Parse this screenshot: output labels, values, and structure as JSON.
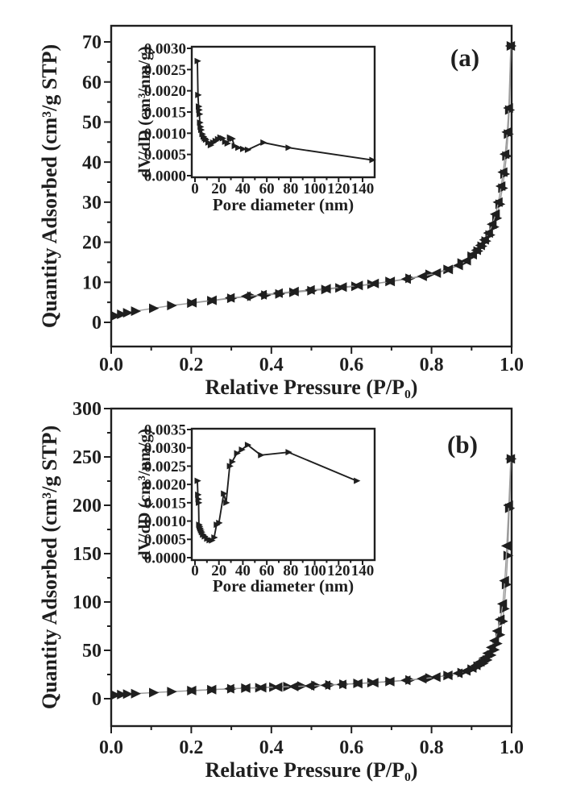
{
  "figure": {
    "background": "#ffffff",
    "ink_color": "#1f1f1f",
    "curve_line_color": "#9a9a9a",
    "marker_color": "#1f1f1f"
  },
  "chart_data": [
    {
      "type": "line",
      "panel_label": "(a)",
      "xlabel": "Relative Pressure (P/P₀)",
      "ylabel": "Quantity Adsorbed (cm³/g STP)",
      "xlim": [
        0.0,
        1.0
      ],
      "ylim": [
        0,
        70
      ],
      "xticks": [
        0.0,
        0.2,
        0.4,
        0.6,
        0.8,
        1.0
      ],
      "yticks": [
        0,
        10,
        20,
        30,
        40,
        50,
        60,
        70
      ],
      "x_tick_decimals": 1,
      "y_tick_decimals": 0,
      "x_minor": true,
      "y_minor": true,
      "grid": false,
      "legend": false,
      "line_color": "#9a9a9a",
      "series": [
        {
          "name": "adsorption",
          "marker": "triangle-right",
          "x": [
            0.01,
            0.025,
            0.04,
            0.06,
            0.105,
            0.15,
            0.2,
            0.25,
            0.3,
            0.35,
            0.385,
            0.42,
            0.455,
            0.5,
            0.535,
            0.57,
            0.61,
            0.65,
            0.695,
            0.745,
            0.795,
            0.84,
            0.875,
            0.9,
            0.915,
            0.925,
            0.935,
            0.945,
            0.955,
            0.962,
            0.97,
            0.977,
            0.982,
            0.987,
            0.991,
            0.994,
            0.998
          ],
          "y": [
            1.6,
            2.0,
            2.4,
            2.8,
            3.5,
            4.2,
            4.8,
            5.4,
            6.0,
            6.5,
            6.8,
            7.1,
            7.5,
            7.9,
            8.2,
            8.6,
            9.0,
            9.5,
            10.2,
            11.0,
            12.0,
            13.2,
            14.8,
            16.5,
            17.8,
            19.0,
            20.3,
            21.8,
            23.8,
            26.0,
            29.5,
            33.5,
            37.0,
            41.5,
            47.0,
            53.0,
            69.0
          ]
        },
        {
          "name": "desorption",
          "marker": "triangle-left",
          "x": [
            0.998,
            0.993,
            0.989,
            0.984,
            0.979,
            0.974,
            0.967,
            0.96,
            0.952,
            0.943,
            0.933,
            0.923,
            0.913,
            0.903,
            0.888,
            0.868,
            0.843,
            0.813,
            0.778,
            0.738,
            0.698,
            0.658,
            0.618,
            0.578,
            0.538,
            0.498,
            0.458,
            0.418,
            0.378,
            0.338,
            0.298,
            0.253,
            0.203
          ],
          "y": [
            69.0,
            53.5,
            47.5,
            42.0,
            37.5,
            34.0,
            30.0,
            27.0,
            24.5,
            22.3,
            20.6,
            19.2,
            18.0,
            16.9,
            15.4,
            14.2,
            13.2,
            12.3,
            11.5,
            10.8,
            10.2,
            9.7,
            9.2,
            8.8,
            8.4,
            8.1,
            7.7,
            7.3,
            6.9,
            6.5,
            6.1,
            5.5,
            4.9
          ]
        }
      ],
      "inset": {
        "type": "line",
        "xlabel": "Pore diameter (nm)",
        "ylabel": "dV/dD (cm³/nm/g)",
        "xlim": [
          0,
          150
        ],
        "ylim": [
          0.0,
          0.003
        ],
        "xticks": [
          0,
          20,
          40,
          60,
          80,
          100,
          120,
          140
        ],
        "yticks": [
          0.0,
          0.0005,
          0.001,
          0.0015,
          0.002,
          0.0025,
          0.003
        ],
        "x_tick_decimals": 0,
        "y_tick_decimals": 4,
        "x_minor": true,
        "y_minor": false,
        "grid": false,
        "legend": false,
        "line_color": "#1f1f1f",
        "series": [
          {
            "name": "pore-size-distribution",
            "marker": "triangle-right",
            "x": [
              2,
              2.5,
              3,
              3.3,
              3.7,
              4,
              4.5,
              5,
              6,
              7,
              8,
              9,
              11,
              13,
              15,
              17,
              19,
              21,
              23,
              25,
              27,
              29,
              31,
              33,
              36,
              40,
              44,
              57,
              78,
              148
            ],
            "y": [
              0.0027,
              0.0019,
              0.00163,
              0.00155,
              0.00145,
              0.00125,
              0.00115,
              0.00108,
              0.00098,
              0.00092,
              0.00088,
              0.00085,
              0.00078,
              0.00072,
              0.00078,
              0.00082,
              0.00086,
              0.0009,
              0.00088,
              0.0008,
              0.00076,
              0.0009,
              0.00087,
              0.0007,
              0.00066,
              0.00063,
              0.00061,
              0.00078,
              0.00066,
              0.00037
            ]
          }
        ]
      }
    },
    {
      "type": "line",
      "panel_label": "(b)",
      "xlabel": "Relative Pressure (P/P₀)",
      "ylabel": "Quantity Adsorbed (cm³/g STP)",
      "xlim": [
        0.0,
        1.0
      ],
      "ylim": [
        0,
        300
      ],
      "xticks": [
        0.0,
        0.2,
        0.4,
        0.6,
        0.8,
        1.0
      ],
      "yticks": [
        0,
        50,
        100,
        150,
        200,
        250,
        300
      ],
      "x_tick_decimals": 1,
      "y_tick_decimals": 0,
      "x_minor": true,
      "y_minor": true,
      "grid": false,
      "legend": false,
      "line_color": "#9a9a9a",
      "series": [
        {
          "name": "adsorption",
          "marker": "triangle-right",
          "x": [
            0.01,
            0.025,
            0.04,
            0.06,
            0.105,
            0.15,
            0.2,
            0.25,
            0.3,
            0.335,
            0.37,
            0.405,
            0.44,
            0.475,
            0.51,
            0.545,
            0.58,
            0.615,
            0.65,
            0.695,
            0.745,
            0.795,
            0.84,
            0.875,
            0.9,
            0.915,
            0.928,
            0.938,
            0.948,
            0.956,
            0.963,
            0.97,
            0.977,
            0.981,
            0.986,
            0.99,
            0.994,
            0.998
          ],
          "y": [
            3.8,
            4.3,
            4.8,
            5.2,
            6.3,
            7.3,
            8.3,
            9.3,
            10.3,
            10.9,
            11.4,
            12.0,
            12.5,
            13.1,
            13.7,
            14.3,
            15.0,
            15.8,
            16.6,
            17.8,
            19.4,
            21.5,
            24.0,
            27.0,
            30.5,
            33.5,
            36.5,
            40.0,
            45.0,
            50.5,
            57.0,
            66.0,
            80.0,
            93.0,
            118.0,
            148.0,
            197.0,
            248.0
          ]
        },
        {
          "name": "desorption",
          "marker": "triangle-left",
          "x": [
            0.998,
            0.993,
            0.988,
            0.983,
            0.978,
            0.972,
            0.965,
            0.958,
            0.95,
            0.941,
            0.932,
            0.922,
            0.912,
            0.902,
            0.887,
            0.867,
            0.842,
            0.812,
            0.777,
            0.737,
            0.697,
            0.657,
            0.617,
            0.577,
            0.537,
            0.497,
            0.457,
            0.417,
            0.377,
            0.337,
            0.297,
            0.252,
            0.202
          ],
          "y": [
            248,
            200,
            158,
            122,
            98,
            82,
            70,
            60,
            53,
            47,
            42,
            38,
            34.5,
            31.8,
            28.8,
            26.3,
            24.2,
            22.3,
            20.6,
            19.0,
            17.7,
            16.6,
            15.6,
            14.7,
            13.9,
            13.2,
            12.6,
            12.0,
            11.4,
            10.9,
            10.3,
            9.4,
            8.4
          ]
        }
      ],
      "inset": {
        "type": "line",
        "xlabel": "Pore diameter (nm)",
        "ylabel": "dV/dD (cm³/nm/g)",
        "xlim": [
          0,
          150
        ],
        "ylim": [
          0.0,
          0.0035
        ],
        "xticks": [
          0,
          20,
          40,
          60,
          80,
          100,
          120,
          140
        ],
        "yticks": [
          0.0,
          0.0005,
          0.001,
          0.0015,
          0.002,
          0.0025,
          0.003,
          0.0035
        ],
        "x_tick_decimals": 0,
        "y_tick_decimals": 4,
        "x_minor": true,
        "y_minor": false,
        "grid": false,
        "legend": false,
        "line_color": "#1f1f1f",
        "series": [
          {
            "name": "pore-size-distribution",
            "marker": "triangle-right",
            "x": [
              2,
              2.4,
              2.7,
              3,
              3.3,
              3.7,
              4.2,
              4.8,
              5.5,
              6.5,
              8,
              10,
              12,
              14,
              16,
              18,
              20,
              24,
              26,
              29,
              31,
              35,
              39,
              44,
              55,
              78,
              135
            ],
            "y": [
              0.0021,
              0.00172,
              0.0016,
              0.0015,
              0.0009,
              0.00085,
              0.0008,
              0.00075,
              0.0007,
              0.00063,
              0.00058,
              0.00052,
              0.00048,
              0.00047,
              0.00055,
              0.0009,
              0.00095,
              0.00175,
              0.0015,
              0.0025,
              0.00262,
              0.00285,
              0.00295,
              0.00308,
              0.0028,
              0.00288,
              0.0021
            ]
          }
        ]
      }
    }
  ]
}
